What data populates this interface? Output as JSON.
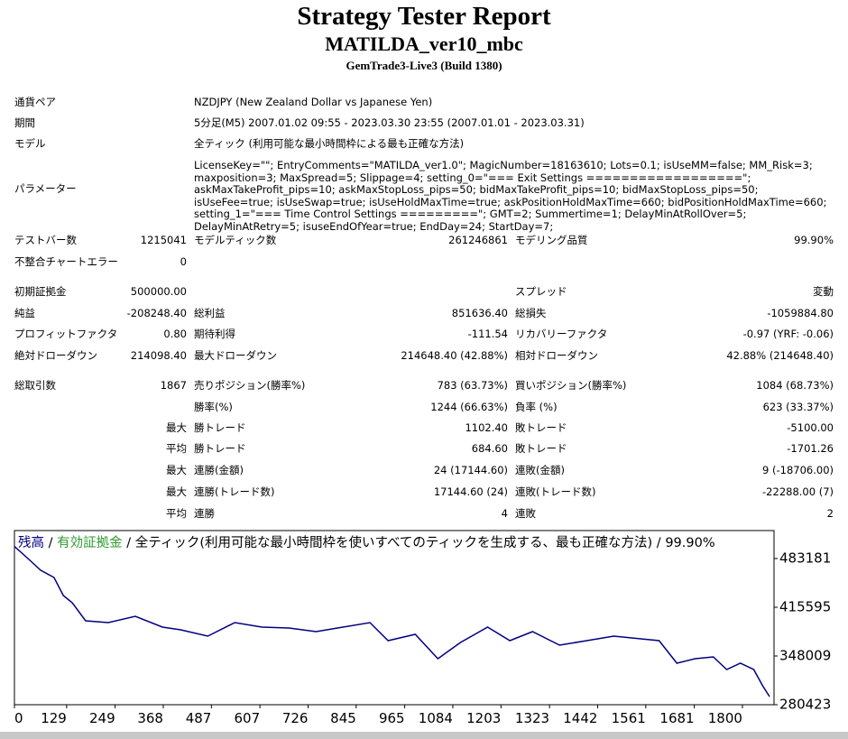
{
  "header": {
    "title": "Strategy Tester Report",
    "subtitle": "MATILDA_ver10_mbc",
    "server": "GemTrade3-Live3 (Build 1380)"
  },
  "info": [
    {
      "label": "通貨ペア",
      "value": "NZDJPY (New Zealand Dollar vs Japanese Yen)"
    },
    {
      "label": "期間",
      "value": "5分足(M5) 2007.01.02 09:55 - 2023.03.30 23:55 (2007.01.01 - 2023.03.31)"
    },
    {
      "label": "モデル",
      "value": "全ティック (利用可能な最小時間枠による最も正確な方法)"
    },
    {
      "label": "パラメーター",
      "value": "LicenseKey=\"\"; EntryComments=\"MATILDA_ver1.0\"; MagicNumber=18163610; Lots=0.1; isUseMM=false; MM_Risk=3; maxposition=3; MaxSpread=5; Slippage=4; setting_0=\"=== Exit Settings ==================\"; askMaxTakeProfit_pips=10; askMaxStopLoss_pips=50; bidMaxTakeProfit_pips=10; bidMaxStopLoss_pips=50; isUseFee=true; isUseSwap=true; isUseHoldMaxTime=true; askPositionHoldMaxTime=660; bidPositionHoldMaxTime=660; setting_1=\"=== Time Control Settings =========\"; GMT=2; Summertime=1; DelayMinAtRollOver=5; DelayMinAtRetry=5; isuseEndOfYear=true; EndDay=24; StartDay=7;"
    }
  ],
  "summary": [
    [
      "テストバー数",
      "1215041",
      "モデルティック数",
      "261246861",
      "モデリング品質",
      "99.90%"
    ],
    [
      "不整合チャートエラー",
      "0",
      null,
      null,
      null,
      null
    ],
    [
      "初期証拠金",
      "500000.00",
      null,
      null,
      "スプレッド",
      "変動"
    ],
    [
      "純益",
      "-208248.40",
      "総利益",
      "851636.40",
      "総損失",
      "-1059884.80"
    ],
    [
      "プロフィットファクタ",
      "0.80",
      "期待利得",
      "-111.54",
      "リカバリーファクタ",
      "-0.97 (YRF: -0.06)"
    ],
    [
      "絶対ドローダウン",
      "214098.40",
      "最大ドローダウン",
      "214648.40 (42.88%)",
      "相対ドローダウン",
      "42.88% (214648.40)"
    ],
    [
      "総取引数",
      "1867",
      "売りポジション(勝率%)",
      "783 (63.73%)",
      "買いポジション(勝率%)",
      "1084 (68.73%)"
    ],
    [
      null,
      null,
      "勝率(%)",
      "1244 (66.63%)",
      "負率 (%)",
      "623 (33.37%)"
    ],
    [
      null,
      "最大",
      "勝トレード",
      "1102.40",
      "敗トレード",
      "-5100.00"
    ],
    [
      null,
      "平均",
      "勝トレード",
      "684.60",
      "敗トレード",
      "-1701.26"
    ],
    [
      null,
      "最大",
      "連勝(金額)",
      "24 (17144.60)",
      "連敗(金額)",
      "9 (-18706.00)"
    ],
    [
      null,
      "最大",
      "連勝(トレード数)",
      "17144.60 (24)",
      "連敗(トレード数)",
      "-22288.00 (7)"
    ],
    [
      null,
      "平均",
      "連勝",
      "4",
      "連敗",
      "2"
    ]
  ],
  "chart_data": {
    "type": "line",
    "title": "全ティック(利用可能な最小時間枠を使いすべてのティックを生成する、最も正確な方法)",
    "quality": "99.90%",
    "separator": "/",
    "other_legend": {
      "text": "有効証拠金",
      "color": "#2e9b2e"
    },
    "x": [
      0,
      31,
      65,
      98,
      121,
      143,
      176,
      232,
      299,
      366,
      411,
      478,
      545,
      612,
      679,
      746,
      812,
      879,
      924,
      991,
      1047,
      1103,
      1170,
      1225,
      1281,
      1348,
      1415,
      1482,
      1549,
      1594,
      1638,
      1683,
      1728,
      1761,
      1795,
      1828,
      1850,
      1867
    ],
    "series": [
      {
        "name": "残高",
        "color": "#000080",
        "values": [
          500000,
          484430,
          466900,
          456900,
          431870,
          421850,
          396800,
          394300,
          403100,
          388100,
          384300,
          375500,
          394300,
          388100,
          386800,
          381800,
          388100,
          394300,
          369300,
          378000,
          344300,
          366800,
          388100,
          369300,
          381800,
          363000,
          369300,
          375500,
          371800,
          369300,
          338000,
          344300,
          346800,
          329200,
          338000,
          329200,
          306700,
          291700
        ]
      }
    ],
    "xlim": [
      0,
      1867
    ],
    "ylim": [
      280423,
      522000
    ],
    "xticks": [
      0,
      129,
      249,
      368,
      487,
      607,
      726,
      845,
      965,
      1084,
      1203,
      1323,
      1442,
      1561,
      1681,
      1800
    ],
    "yticks": [
      280423,
      348009,
      415595,
      483181
    ]
  }
}
